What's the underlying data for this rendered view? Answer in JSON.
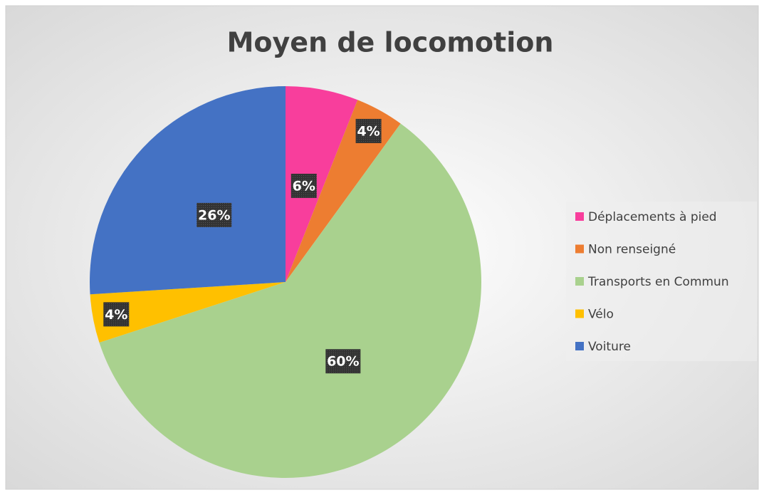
{
  "chart_data": {
    "type": "pie",
    "title": "Moyen de locomotion",
    "categories": [
      "Déplacements à pied",
      "Non renseigné",
      "Transports en Commun",
      "Vélo",
      "Voiture"
    ],
    "values": [
      6,
      4,
      60,
      4,
      26
    ],
    "value_labels": [
      "6%",
      "4%",
      "60%",
      "4%",
      "26%"
    ],
    "colors": [
      "#f83e9c",
      "#ed7d31",
      "#a9d18e",
      "#ffc000",
      "#4472c4"
    ],
    "legend": "right"
  }
}
